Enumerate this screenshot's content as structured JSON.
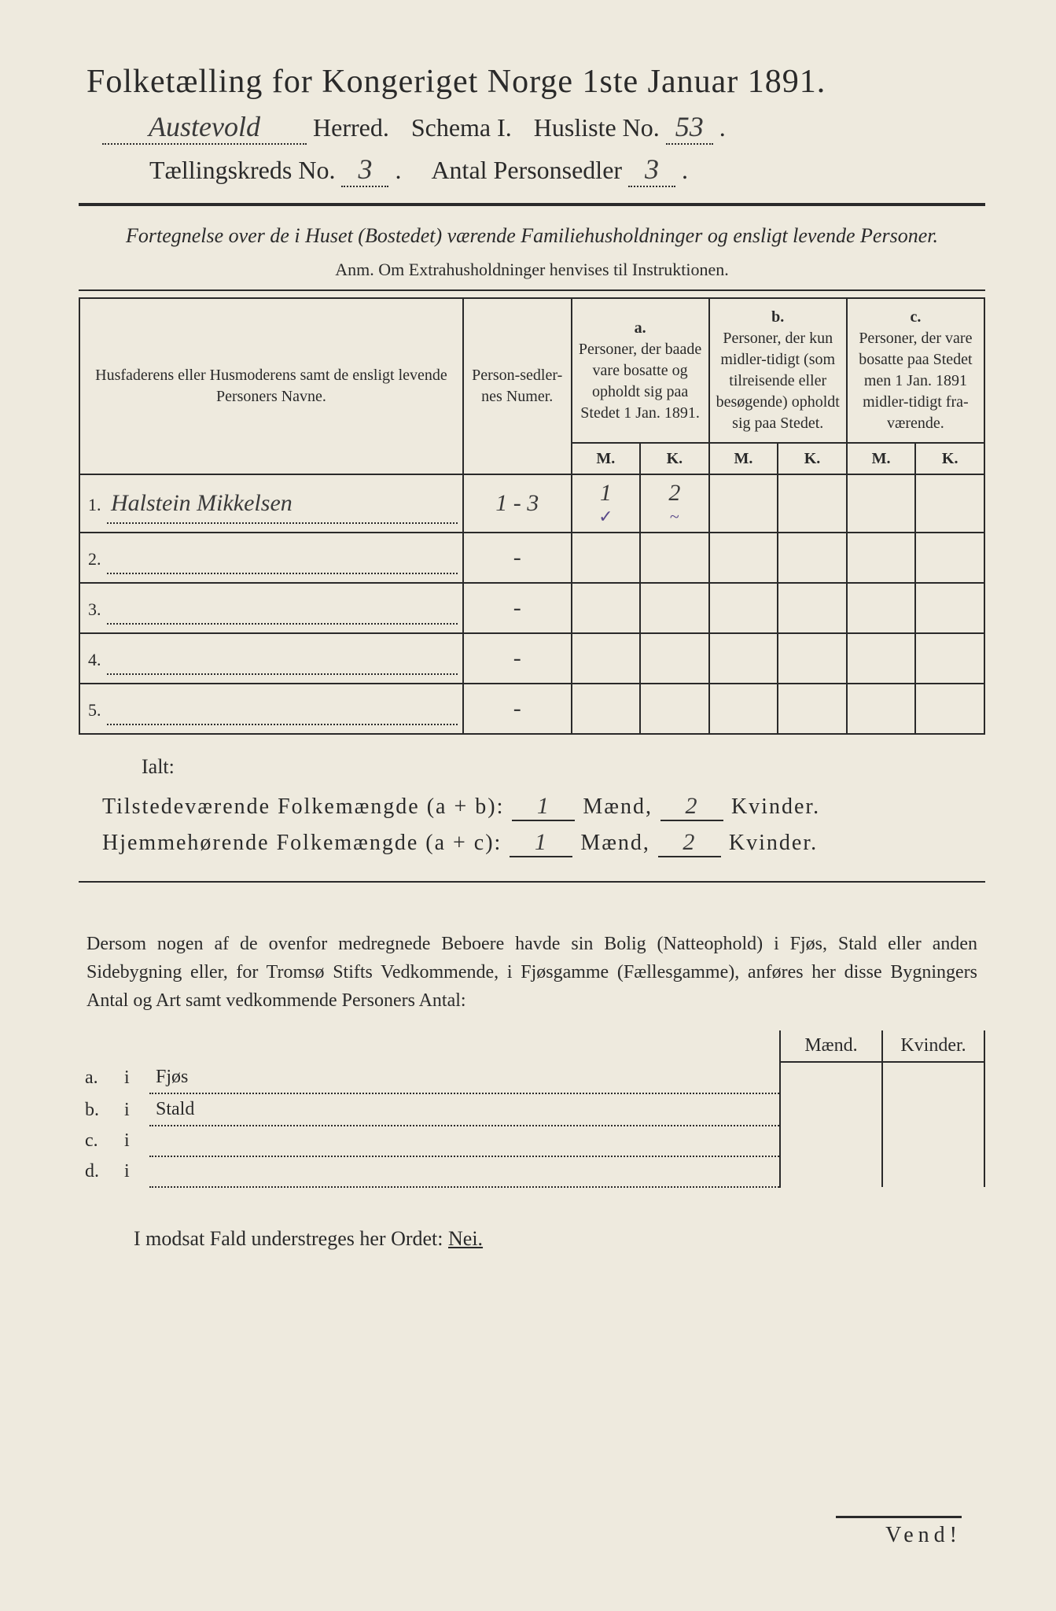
{
  "header": {
    "title": "Folketælling for Kongeriget Norge 1ste Januar 1891.",
    "herred_value": "Austevold",
    "herred_label": "Herred.",
    "schema_label": "Schema I.",
    "husliste_label": "Husliste No.",
    "husliste_value": "53",
    "kreds_label": "Tællingskreds No.",
    "kreds_value": "3",
    "antal_label": "Antal Personsedler",
    "antal_value": "3"
  },
  "fortegnelse": {
    "text": "Fortegnelse over de i Huset (Bostedet) værende Familiehusholdninger og ensligt levende Personer.",
    "anm": "Anm. Om Extrahusholdninger henvises til Instruktionen."
  },
  "table": {
    "col_name": "Husfaderens eller Husmoderens samt de ensligt levende Personers Navne.",
    "col_numer": "Person-sedler-nes Numer.",
    "col_a_label": "a.",
    "col_a": "Personer, der baade vare bosatte og opholdt sig paa Stedet 1 Jan. 1891.",
    "col_b_label": "b.",
    "col_b": "Personer, der kun midler-tidigt (som tilreisende eller besøgende) opholdt sig paa Stedet.",
    "col_c_label": "c.",
    "col_c": "Personer, der vare bosatte paa Stedet men 1 Jan. 1891 midler-tidigt fra-værende.",
    "m": "M.",
    "k": "K.",
    "rows": [
      {
        "n": "1.",
        "name": "Halstein Mikkelsen",
        "numer": "1 - 3",
        "a_m": "1",
        "a_k": "2",
        "chk_m": "✓",
        "chk_k": "~"
      },
      {
        "n": "2.",
        "name": "",
        "numer": "-",
        "a_m": "",
        "a_k": "",
        "chk_m": "",
        "chk_k": ""
      },
      {
        "n": "3.",
        "name": "",
        "numer": "-",
        "a_m": "",
        "a_k": "",
        "chk_m": "",
        "chk_k": ""
      },
      {
        "n": "4.",
        "name": "",
        "numer": "-",
        "a_m": "",
        "a_k": "",
        "chk_m": "",
        "chk_k": ""
      },
      {
        "n": "5.",
        "name": "",
        "numer": "-",
        "a_m": "",
        "a_k": "",
        "chk_m": "",
        "chk_k": ""
      }
    ]
  },
  "totals": {
    "ialt": "Ialt:",
    "line1_label": "Tilstedeværende Folkemængde (a + b):",
    "line2_label": "Hjemmehørende Folkemængde (a + c):",
    "maend": "Mænd,",
    "kvinder": "Kvinder.",
    "l1_m": "1",
    "l1_k": "2",
    "l2_m": "1",
    "l2_k": "2"
  },
  "dersom": {
    "text": "Dersom nogen af de ovenfor medregnede Beboere havde sin Bolig (Natteophold) i Fjøs, Stald eller anden Sidebygning eller, for Tromsø Stifts Vedkommende, i Fjøsgamme (Fællesgamme), anføres her disse Bygningers Antal og Art samt vedkommende Personers Antal:",
    "maend": "Mænd.",
    "kvinder": "Kvinder.",
    "rows": [
      {
        "lbl": "a.",
        "i": "i",
        "name": "Fjøs"
      },
      {
        "lbl": "b.",
        "i": "i",
        "name": "Stald"
      },
      {
        "lbl": "c.",
        "i": "i",
        "name": ""
      },
      {
        "lbl": "d.",
        "i": "i",
        "name": ""
      }
    ]
  },
  "footer": {
    "modsat": "I modsat Fald understreges her Ordet:",
    "nei": "Nei.",
    "vend": "Vend!"
  }
}
